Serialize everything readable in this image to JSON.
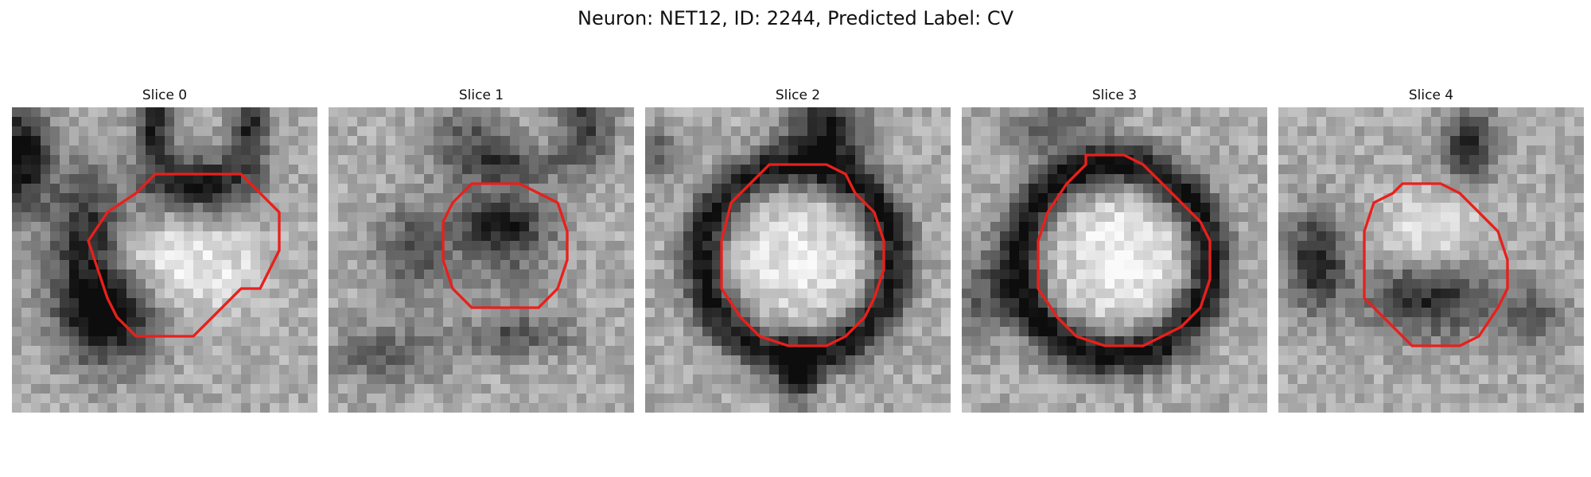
{
  "figure": {
    "title": "Neuron: NET12, ID: 2244, Predicted Label: CV"
  },
  "colors": {
    "contour": "#e8201c"
  },
  "panels": [
    {
      "title": "Slice 0",
      "seed": 11,
      "contour": [
        [
          20,
          7
        ],
        [
          24,
          7
        ],
        [
          28,
          11
        ],
        [
          28,
          15
        ],
        [
          26,
          19
        ],
        [
          24,
          19
        ],
        [
          20,
          23
        ],
        [
          19,
          24
        ],
        [
          17,
          24
        ],
        [
          13,
          24
        ],
        [
          11,
          22
        ],
        [
          10,
          20
        ],
        [
          9,
          17
        ],
        [
          8,
          14
        ],
        [
          10,
          11
        ],
        [
          13,
          9
        ],
        [
          15,
          7
        ]
      ],
      "blobs": [
        [
          8,
          14,
          4,
          7,
          0.55
        ],
        [
          1,
          5,
          3,
          6,
          0.65
        ],
        [
          20,
          8,
          5,
          3,
          0.6
        ],
        [
          15,
          1,
          2,
          7,
          0.55
        ],
        [
          25,
          2,
          2,
          5,
          0.55
        ],
        [
          10,
          22,
          5,
          5,
          0.65
        ],
        [
          14,
          16,
          6,
          4,
          -0.25
        ],
        [
          22,
          17,
          5,
          5,
          -0.2
        ]
      ]
    },
    {
      "title": "Slice 1",
      "seed": 23,
      "contour": [
        [
          16,
          8
        ],
        [
          20,
          8
        ],
        [
          22,
          9
        ],
        [
          24,
          10
        ],
        [
          25,
          13
        ],
        [
          25,
          16
        ],
        [
          24,
          19
        ],
        [
          22,
          21
        ],
        [
          18,
          21
        ],
        [
          15,
          21
        ],
        [
          13,
          19
        ],
        [
          12,
          16
        ],
        [
          12,
          12
        ],
        [
          13,
          10
        ],
        [
          15,
          8
        ]
      ],
      "blobs": [
        [
          18,
          12,
          5,
          3,
          0.55
        ],
        [
          19,
          6,
          6,
          2,
          0.4
        ],
        [
          9,
          15,
          4,
          5,
          0.35
        ],
        [
          6,
          26,
          6,
          3,
          0.3
        ],
        [
          20,
          24,
          6,
          2,
          0.35
        ],
        [
          19,
          17,
          5,
          4,
          0.2
        ],
        [
          27,
          1,
          3,
          5,
          0.45
        ],
        [
          15,
          3,
          4,
          4,
          0.3
        ]
      ]
    },
    {
      "title": "Slice 2",
      "seed": 37,
      "contour": [
        [
          15,
          6
        ],
        [
          19,
          6
        ],
        [
          21,
          7
        ],
        [
          22,
          9
        ],
        [
          24,
          11
        ],
        [
          25,
          14
        ],
        [
          25,
          17
        ],
        [
          24,
          20
        ],
        [
          23,
          22
        ],
        [
          21,
          24
        ],
        [
          19,
          25
        ],
        [
          15,
          25
        ],
        [
          12,
          24
        ],
        [
          10,
          22
        ],
        [
          8,
          19
        ],
        [
          8,
          14
        ],
        [
          9,
          10
        ],
        [
          11,
          8
        ],
        [
          13,
          6
        ]
      ],
      "ring": [
        16,
        16,
        10,
        2.4,
        0.6
      ],
      "blobs": [
        [
          16,
          16,
          7,
          7,
          -0.25
        ],
        [
          19,
          2,
          4,
          4,
          0.55
        ],
        [
          16,
          28,
          2,
          3,
          0.55
        ],
        [
          1,
          5,
          2,
          3,
          0.35
        ]
      ]
    },
    {
      "title": "Slice 3",
      "seed": 41,
      "contour": [
        [
          13,
          5
        ],
        [
          17,
          5
        ],
        [
          19,
          6
        ],
        [
          21,
          8
        ],
        [
          23,
          10
        ],
        [
          25,
          12
        ],
        [
          26,
          14
        ],
        [
          26,
          18
        ],
        [
          25,
          21
        ],
        [
          23,
          23
        ],
        [
          21,
          24
        ],
        [
          19,
          25
        ],
        [
          15,
          25
        ],
        [
          12,
          24
        ],
        [
          10,
          22
        ],
        [
          8,
          19
        ],
        [
          8,
          14
        ],
        [
          9,
          11
        ],
        [
          11,
          8
        ],
        [
          13,
          6
        ]
      ],
      "ring": [
        16,
        16,
        10,
        2.4,
        0.65
      ],
      "blobs": [
        [
          17,
          16,
          7,
          7,
          -0.3
        ],
        [
          10,
          2,
          5,
          3,
          0.3
        ],
        [
          2,
          20,
          3,
          5,
          0.3
        ]
      ]
    },
    {
      "title": "Slice 4",
      "seed": 53,
      "contour": [
        [
          13,
          8
        ],
        [
          17,
          8
        ],
        [
          19,
          9
        ],
        [
          21,
          11
        ],
        [
          23,
          13
        ],
        [
          24,
          16
        ],
        [
          24,
          19
        ],
        [
          23,
          21
        ],
        [
          21,
          24
        ],
        [
          19,
          25
        ],
        [
          16,
          25
        ],
        [
          14,
          25
        ],
        [
          12,
          23
        ],
        [
          9,
          20
        ],
        [
          9,
          17
        ],
        [
          9,
          13
        ],
        [
          10,
          10
        ],
        [
          12,
          9
        ]
      ],
      "blobs": [
        [
          16,
          20,
          7,
          4,
          0.5
        ],
        [
          4,
          16,
          3,
          5,
          0.55
        ],
        [
          20,
          4,
          3,
          4,
          0.5
        ],
        [
          16,
          13,
          5,
          4,
          -0.25
        ],
        [
          27,
          22,
          3,
          3,
          0.3
        ]
      ]
    }
  ]
}
